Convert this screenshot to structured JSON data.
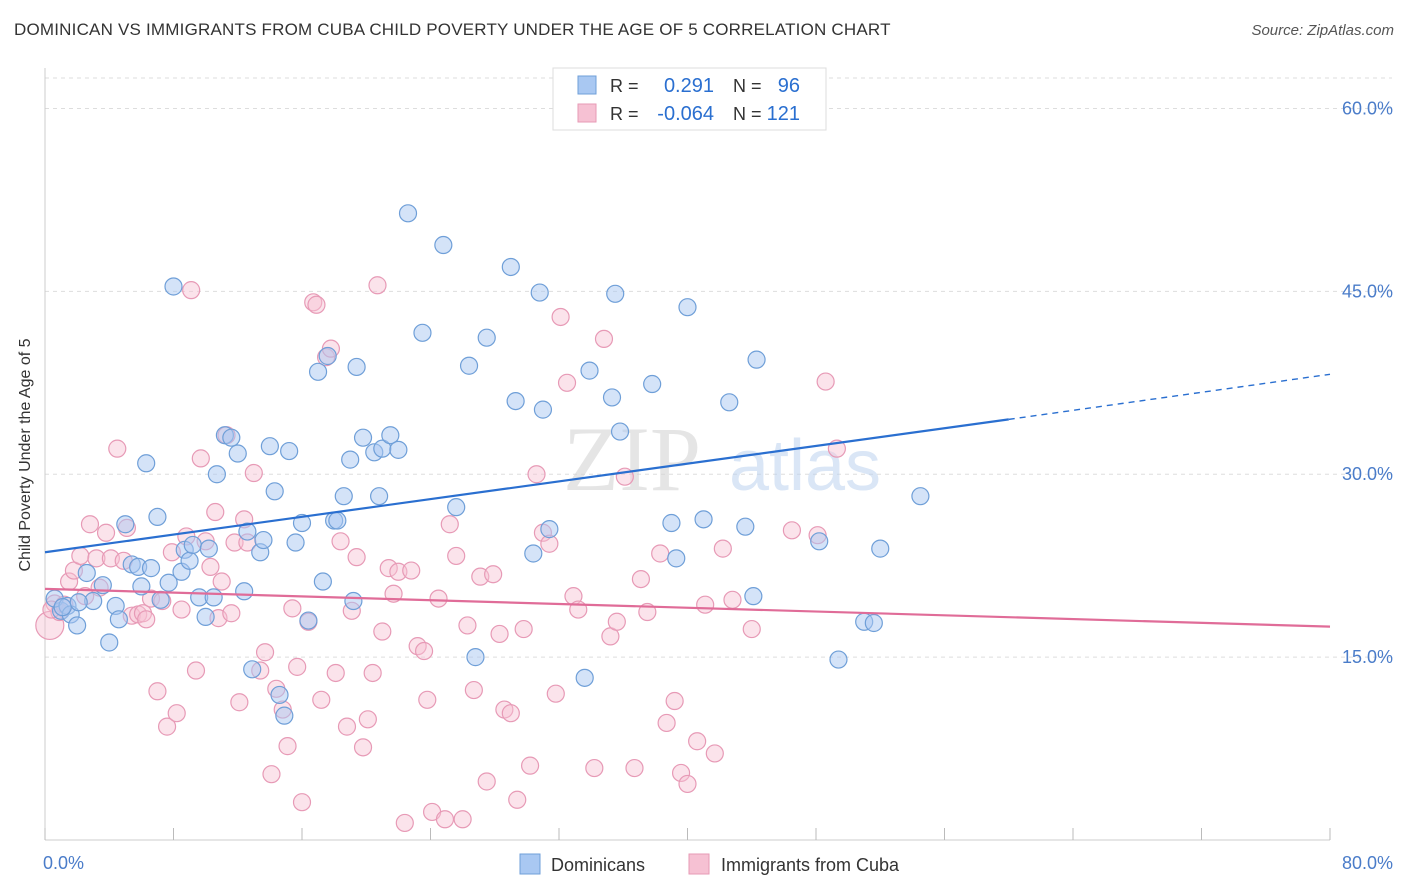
{
  "title": "DOMINICAN VS IMMIGRANTS FROM CUBA CHILD POVERTY UNDER THE AGE OF 5 CORRELATION CHART",
  "source": "Source: ZipAtlas.com",
  "watermark": {
    "zip": "ZIP",
    "atlas": "atlas"
  },
  "legend_box": {
    "rows": [
      {
        "r_label": "R =",
        "r_value": "0.291",
        "n_label": "N =",
        "n_value": "96"
      },
      {
        "r_label": "R =",
        "r_value": "-0.064",
        "n_label": "N =",
        "n_value": "121"
      }
    ]
  },
  "colors": {
    "blue_fill": "#a9c8f2",
    "blue_stroke": "#6f9fd8",
    "blue_line": "#2a6fd0",
    "pink_fill": "#f6c1d3",
    "pink_stroke": "#e79ab6",
    "pink_line": "#e06c98",
    "axis_text": "#4a7cc9",
    "grid": "#dddddd"
  },
  "chart_data": {
    "type": "scatter",
    "title": "DOMINICAN VS IMMIGRANTS FROM CUBA CHILD POVERTY UNDER THE AGE OF 5 CORRELATION CHART",
    "xlabel": "",
    "ylabel": "Child Poverty Under the Age of 5",
    "xlim": [
      0,
      80
    ],
    "ylim": [
      0,
      62.5
    ],
    "x_tick_labels": [
      "0.0%",
      "80.0%"
    ],
    "y_ticks": [
      15,
      30,
      45,
      60
    ],
    "y_tick_labels": [
      "15.0%",
      "30.0%",
      "45.0%",
      "60.0%"
    ],
    "series": [
      {
        "name": "Dominicans",
        "r": 0.291,
        "n": 96,
        "trend": {
          "x0": 0,
          "y0": 23.6,
          "x1": 60,
          "y1": 34.5,
          "dash_x1": 80,
          "dash_y1": 38.2
        },
        "points": [
          [
            1.0,
            18.8
          ],
          [
            0.6,
            19.8
          ],
          [
            1.4,
            19.2
          ],
          [
            1.6,
            18.5
          ],
          [
            2.0,
            17.6
          ],
          [
            2.6,
            21.9
          ],
          [
            3.0,
            19.6
          ],
          [
            3.6,
            20.9
          ],
          [
            4.0,
            16.2
          ],
          [
            4.4,
            19.2
          ],
          [
            4.6,
            18.1
          ],
          [
            5.0,
            25.9
          ],
          [
            5.4,
            22.6
          ],
          [
            5.8,
            22.4
          ],
          [
            6.0,
            20.8
          ],
          [
            6.3,
            30.9
          ],
          [
            6.6,
            22.3
          ],
          [
            7.0,
            26.5
          ],
          [
            7.2,
            19.7
          ],
          [
            7.7,
            21.1
          ],
          [
            8.0,
            45.4
          ],
          [
            8.5,
            22.0
          ],
          [
            8.7,
            23.8
          ],
          [
            9.0,
            22.9
          ],
          [
            9.2,
            24.2
          ],
          [
            9.6,
            19.9
          ],
          [
            10.0,
            18.3
          ],
          [
            10.2,
            23.9
          ],
          [
            10.5,
            19.9
          ],
          [
            10.7,
            30.0
          ],
          [
            11.2,
            33.2
          ],
          [
            11.6,
            33.0
          ],
          [
            12.0,
            31.7
          ],
          [
            12.4,
            20.4
          ],
          [
            12.6,
            25.3
          ],
          [
            12.9,
            14.0
          ],
          [
            13.4,
            23.6
          ],
          [
            13.6,
            24.6
          ],
          [
            14.0,
            32.3
          ],
          [
            14.3,
            28.6
          ],
          [
            14.6,
            11.9
          ],
          [
            14.9,
            10.2
          ],
          [
            15.2,
            31.9
          ],
          [
            15.6,
            24.4
          ],
          [
            16.0,
            26.0
          ],
          [
            16.4,
            18.0
          ],
          [
            17.0,
            38.4
          ],
          [
            17.3,
            21.2
          ],
          [
            17.6,
            39.7
          ],
          [
            18.0,
            26.2
          ],
          [
            18.2,
            26.2
          ],
          [
            18.6,
            28.2
          ],
          [
            19.0,
            31.2
          ],
          [
            19.2,
            19.6
          ],
          [
            19.4,
            38.8
          ],
          [
            19.8,
            33.0
          ],
          [
            20.5,
            31.8
          ],
          [
            20.8,
            28.2
          ],
          [
            21.0,
            32.1
          ],
          [
            21.5,
            33.2
          ],
          [
            22.0,
            32.0
          ],
          [
            22.6,
            51.4
          ],
          [
            23.5,
            41.6
          ],
          [
            24.8,
            48.8
          ],
          [
            25.6,
            27.3
          ],
          [
            26.4,
            38.9
          ],
          [
            26.8,
            15.0
          ],
          [
            27.5,
            41.2
          ],
          [
            29.0,
            47.0
          ],
          [
            29.3,
            36.0
          ],
          [
            30.4,
            23.5
          ],
          [
            30.8,
            44.9
          ],
          [
            31.0,
            35.3
          ],
          [
            31.4,
            25.5
          ],
          [
            33.6,
            13.3
          ],
          [
            33.9,
            38.5
          ],
          [
            35.3,
            36.3
          ],
          [
            35.5,
            44.8
          ],
          [
            35.8,
            33.5
          ],
          [
            37.8,
            37.4
          ],
          [
            39.0,
            26.0
          ],
          [
            39.3,
            23.1
          ],
          [
            40.0,
            43.7
          ],
          [
            41.0,
            26.3
          ],
          [
            42.6,
            35.9
          ],
          [
            43.6,
            25.7
          ],
          [
            44.1,
            20.0
          ],
          [
            44.3,
            39.4
          ],
          [
            48.2,
            24.5
          ],
          [
            49.4,
            14.8
          ],
          [
            51.0,
            17.9
          ],
          [
            51.6,
            17.8
          ],
          [
            52.0,
            23.9
          ],
          [
            54.5,
            28.2
          ],
          [
            2.1,
            19.5
          ],
          [
            1.1,
            19.1
          ]
        ]
      },
      {
        "name": "Immigrants from Cuba",
        "r": -0.064,
        "n": 121,
        "trend": {
          "x0": 0,
          "y0": 20.6,
          "x1": 80,
          "y1": 17.5
        },
        "points": [
          [
            0.3,
            17.6
          ],
          [
            0.6,
            19.4
          ],
          [
            0.9,
            18.7
          ],
          [
            1.2,
            19.3
          ],
          [
            1.5,
            21.2
          ],
          [
            1.8,
            22.1
          ],
          [
            2.2,
            23.3
          ],
          [
            2.5,
            20.0
          ],
          [
            2.8,
            25.9
          ],
          [
            3.2,
            23.1
          ],
          [
            3.4,
            20.7
          ],
          [
            3.8,
            25.2
          ],
          [
            4.1,
            23.1
          ],
          [
            4.5,
            32.1
          ],
          [
            4.9,
            22.9
          ],
          [
            5.1,
            25.6
          ],
          [
            5.4,
            18.4
          ],
          [
            5.8,
            18.5
          ],
          [
            6.1,
            18.6
          ],
          [
            6.3,
            18.1
          ],
          [
            6.6,
            19.8
          ],
          [
            7.0,
            12.2
          ],
          [
            7.3,
            19.6
          ],
          [
            7.6,
            9.3
          ],
          [
            7.9,
            23.6
          ],
          [
            8.2,
            10.4
          ],
          [
            8.5,
            18.9
          ],
          [
            8.8,
            24.9
          ],
          [
            9.1,
            45.1
          ],
          [
            9.4,
            13.9
          ],
          [
            9.7,
            31.3
          ],
          [
            10.0,
            24.5
          ],
          [
            10.3,
            22.4
          ],
          [
            10.6,
            26.9
          ],
          [
            10.8,
            18.2
          ],
          [
            11.0,
            21.2
          ],
          [
            11.3,
            33.2
          ],
          [
            11.6,
            18.6
          ],
          [
            11.8,
            24.4
          ],
          [
            12.1,
            11.3
          ],
          [
            12.4,
            26.3
          ],
          [
            12.6,
            24.4
          ],
          [
            13.0,
            30.1
          ],
          [
            13.4,
            13.9
          ],
          [
            13.7,
            15.4
          ],
          [
            14.1,
            5.4
          ],
          [
            14.4,
            12.4
          ],
          [
            14.8,
            10.7
          ],
          [
            15.1,
            7.7
          ],
          [
            15.4,
            19.0
          ],
          [
            15.7,
            14.2
          ],
          [
            16.0,
            3.1
          ],
          [
            16.4,
            17.9
          ],
          [
            16.7,
            44.1
          ],
          [
            16.9,
            43.9
          ],
          [
            17.2,
            11.5
          ],
          [
            17.5,
            39.6
          ],
          [
            17.8,
            40.3
          ],
          [
            18.1,
            13.7
          ],
          [
            18.4,
            24.5
          ],
          [
            18.8,
            9.3
          ],
          [
            19.1,
            18.8
          ],
          [
            19.4,
            23.2
          ],
          [
            19.8,
            7.6
          ],
          [
            20.1,
            9.9
          ],
          [
            20.4,
            13.7
          ],
          [
            20.7,
            45.5
          ],
          [
            21.0,
            17.1
          ],
          [
            21.4,
            22.3
          ],
          [
            21.7,
            20.2
          ],
          [
            22.0,
            22.0
          ],
          [
            22.4,
            1.4
          ],
          [
            22.8,
            22.1
          ],
          [
            23.2,
            15.9
          ],
          [
            23.6,
            15.5
          ],
          [
            23.8,
            11.5
          ],
          [
            24.1,
            2.3
          ],
          [
            24.5,
            19.8
          ],
          [
            24.9,
            1.7
          ],
          [
            25.2,
            25.9
          ],
          [
            25.6,
            23.3
          ],
          [
            26.0,
            1.7
          ],
          [
            26.3,
            17.6
          ],
          [
            26.7,
            12.3
          ],
          [
            27.1,
            21.6
          ],
          [
            27.5,
            4.8
          ],
          [
            27.9,
            21.8
          ],
          [
            28.3,
            16.9
          ],
          [
            28.6,
            10.7
          ],
          [
            29.0,
            10.4
          ],
          [
            29.4,
            3.3
          ],
          [
            29.8,
            17.3
          ],
          [
            30.2,
            6.1
          ],
          [
            30.6,
            30.0
          ],
          [
            31.0,
            25.2
          ],
          [
            31.4,
            24.3
          ],
          [
            31.8,
            12.0
          ],
          [
            32.1,
            42.9
          ],
          [
            32.5,
            37.5
          ],
          [
            32.9,
            20.0
          ],
          [
            33.2,
            18.9
          ],
          [
            34.2,
            5.9
          ],
          [
            34.8,
            41.1
          ],
          [
            35.2,
            16.7
          ],
          [
            35.6,
            17.9
          ],
          [
            36.1,
            29.8
          ],
          [
            36.7,
            5.9
          ],
          [
            37.1,
            21.4
          ],
          [
            37.5,
            18.7
          ],
          [
            38.3,
            23.5
          ],
          [
            38.7,
            9.6
          ],
          [
            39.2,
            11.4
          ],
          [
            39.6,
            5.5
          ],
          [
            40.0,
            4.6
          ],
          [
            40.6,
            8.1
          ],
          [
            41.1,
            19.3
          ],
          [
            41.7,
            7.1
          ],
          [
            42.2,
            23.9
          ],
          [
            42.8,
            19.7
          ],
          [
            44.0,
            17.3
          ],
          [
            46.5,
            25.4
          ],
          [
            48.1,
            25.0
          ],
          [
            48.6,
            37.6
          ],
          [
            49.3,
            32.1
          ],
          [
            0.4,
            18.9
          ]
        ]
      }
    ]
  },
  "bottom_legend": [
    "Dominicans",
    "Immigrants from Cuba"
  ]
}
